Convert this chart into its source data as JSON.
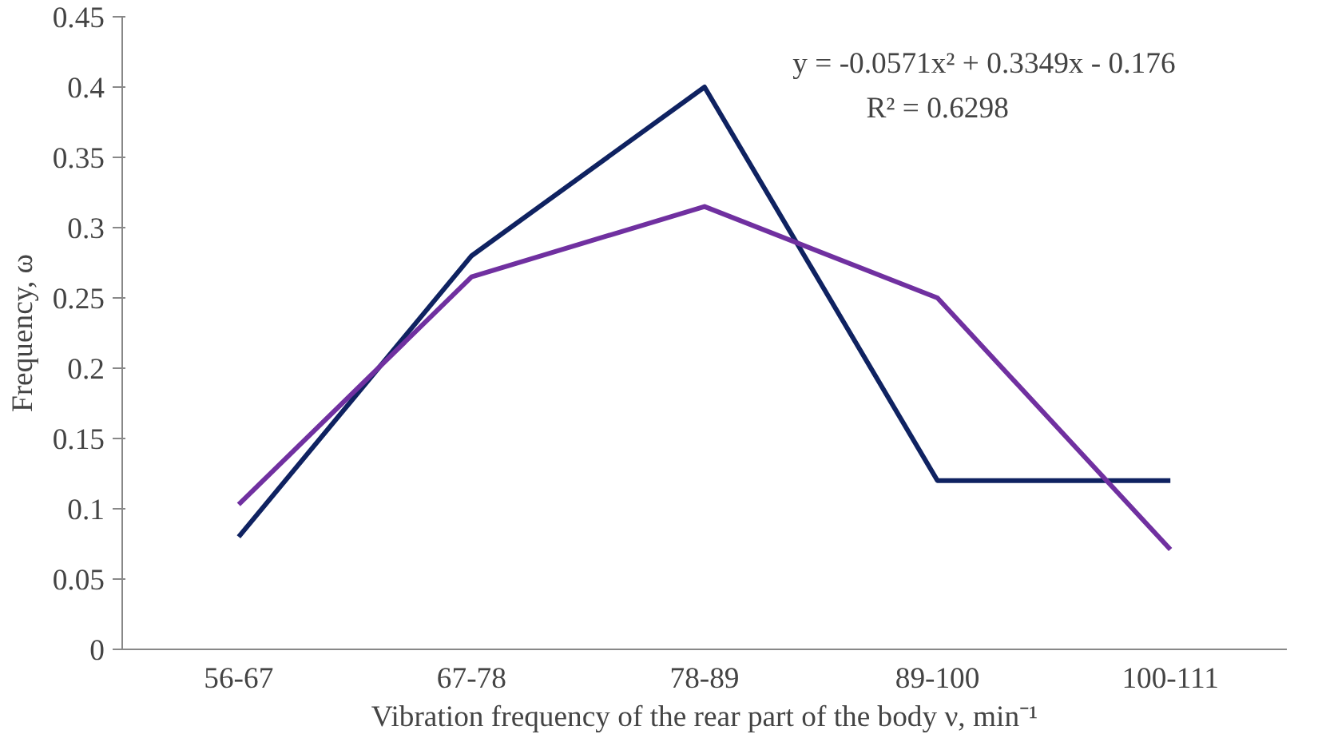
{
  "chart_data": {
    "type": "line",
    "xlabel": "Vibration frequency of the rear part of the body ν, min⁻¹",
    "ylabel": "Frequency, ω",
    "categories": [
      "56-67",
      "67-78",
      "78-89",
      "89-100",
      "100-111"
    ],
    "series": [
      {
        "color": "#0f2261",
        "values": [
          0.08,
          0.28,
          0.4,
          0.12,
          0.12
        ]
      },
      {
        "type": "line",
        "color": "#7030a0",
        "values": [
          0.103,
          0.265,
          0.315,
          0.25,
          0.071
        ]
      }
    ],
    "ylim": [
      0,
      0.45
    ],
    "yticks": [
      0,
      0.05,
      0.1,
      0.15,
      0.2,
      0.25,
      0.3,
      0.35,
      0.4,
      0.45
    ],
    "grid": false,
    "marker": "none",
    "line_style": "solid",
    "annotations": [
      "y = -0.0571x² + 0.3349x - 0.176",
      "R² = 0.6298"
    ]
  }
}
